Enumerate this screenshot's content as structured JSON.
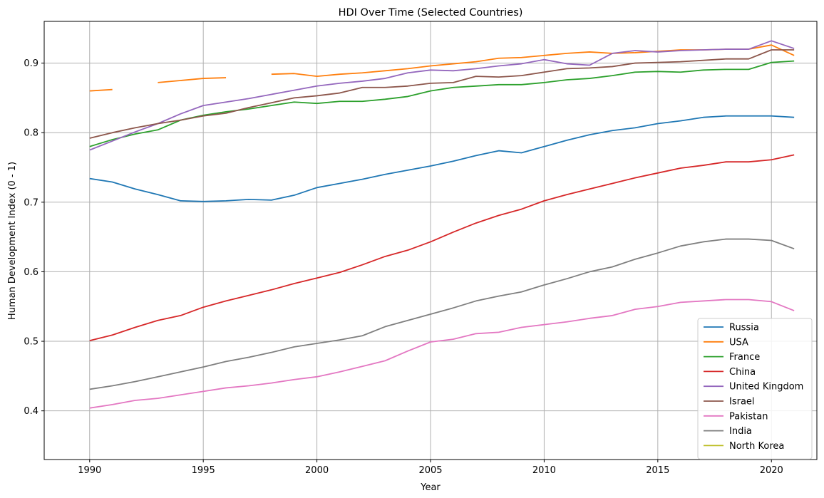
{
  "chart_data": {
    "type": "line",
    "title": "HDI Over Time (Selected Countries)",
    "xlabel": "Year",
    "ylabel": "Human Development Index (0 - 1)",
    "xlim": [
      1988,
      2022
    ],
    "ylim": [
      0.33,
      0.96
    ],
    "xticks": [
      1990,
      1995,
      2000,
      2005,
      2010,
      2015,
      2020
    ],
    "yticks": [
      0.4,
      0.5,
      0.6,
      0.7,
      0.8,
      0.9
    ],
    "grid": true,
    "legend_position": "lower-right",
    "x": [
      1990,
      1991,
      1992,
      1993,
      1994,
      1995,
      1996,
      1997,
      1998,
      1999,
      2000,
      2001,
      2002,
      2003,
      2004,
      2005,
      2006,
      2007,
      2008,
      2009,
      2010,
      2011,
      2012,
      2013,
      2014,
      2015,
      2016,
      2017,
      2018,
      2019,
      2020,
      2021
    ],
    "series": [
      {
        "name": "Russia",
        "color": "#1f77b4",
        "values": [
          0.734,
          0.729,
          0.719,
          0.711,
          0.702,
          0.701,
          0.702,
          0.704,
          0.703,
          0.71,
          0.721,
          0.727,
          0.733,
          0.74,
          0.746,
          0.752,
          0.759,
          0.767,
          0.774,
          0.771,
          0.78,
          0.789,
          0.797,
          0.803,
          0.807,
          0.813,
          0.817,
          0.822,
          0.824,
          0.824,
          0.824,
          0.822
        ]
      },
      {
        "name": "USA",
        "color": "#ff7f0e",
        "values": [
          0.86,
          0.862,
          null,
          0.872,
          0.875,
          0.878,
          0.879,
          null,
          0.884,
          0.885,
          0.881,
          0.884,
          0.886,
          0.889,
          0.892,
          0.896,
          0.899,
          0.902,
          0.907,
          0.908,
          0.911,
          0.914,
          0.916,
          0.914,
          0.915,
          0.917,
          0.919,
          0.919,
          0.92,
          0.92,
          0.926,
          0.911
        ]
      },
      {
        "name": "France",
        "color": "#2ca02c",
        "values": [
          0.78,
          0.79,
          0.798,
          0.804,
          0.818,
          0.825,
          0.83,
          0.834,
          0.839,
          0.844,
          0.842,
          0.845,
          0.845,
          0.848,
          0.852,
          0.86,
          0.865,
          0.867,
          0.869,
          0.869,
          0.872,
          0.876,
          0.878,
          0.882,
          0.887,
          0.888,
          0.887,
          0.89,
          0.891,
          0.891,
          0.901,
          0.903
        ]
      },
      {
        "name": "China",
        "color": "#d62728",
        "values": [
          0.501,
          0.509,
          0.52,
          0.53,
          0.537,
          0.549,
          0.558,
          0.566,
          0.574,
          0.583,
          0.591,
          0.599,
          0.61,
          0.622,
          0.631,
          0.643,
          0.657,
          0.67,
          0.681,
          0.69,
          0.702,
          0.711,
          0.719,
          0.727,
          0.735,
          0.742,
          0.749,
          0.753,
          0.758,
          0.758,
          0.761,
          0.768
        ]
      },
      {
        "name": "United Kingdom",
        "color": "#9467bd",
        "values": [
          0.775,
          0.788,
          0.801,
          0.813,
          0.827,
          0.839,
          0.844,
          0.849,
          0.855,
          0.861,
          0.867,
          0.871,
          0.874,
          0.878,
          0.886,
          0.89,
          0.889,
          0.892,
          0.896,
          0.899,
          0.905,
          0.899,
          0.897,
          0.914,
          0.918,
          0.916,
          0.918,
          0.919,
          0.92,
          0.92,
          0.932,
          0.921
        ]
      },
      {
        "name": "Israel",
        "color": "#8c564b",
        "values": [
          0.792,
          0.8,
          0.807,
          0.813,
          0.818,
          0.824,
          0.828,
          0.836,
          0.843,
          0.85,
          0.853,
          0.857,
          0.865,
          0.865,
          0.867,
          0.871,
          0.872,
          0.881,
          0.88,
          0.882,
          0.887,
          0.892,
          0.893,
          0.895,
          0.9,
          0.901,
          0.902,
          0.904,
          0.906,
          0.906,
          0.919,
          0.919
        ]
      },
      {
        "name": "Pakistan",
        "color": "#e377c2",
        "values": [
          0.404,
          0.409,
          0.415,
          0.418,
          0.423,
          0.428,
          0.433,
          0.436,
          0.44,
          0.445,
          0.449,
          0.456,
          0.464,
          0.472,
          0.486,
          0.499,
          0.503,
          0.511,
          0.513,
          0.52,
          0.524,
          0.528,
          0.533,
          0.537,
          0.546,
          0.55,
          0.556,
          0.558,
          0.56,
          0.56,
          0.557,
          0.544
        ]
      },
      {
        "name": "India",
        "color": "#7f7f7f",
        "values": [
          0.431,
          0.436,
          0.442,
          0.449,
          0.456,
          0.463,
          0.471,
          0.477,
          0.484,
          0.492,
          0.497,
          0.502,
          0.508,
          0.521,
          0.53,
          0.539,
          0.548,
          0.558,
          0.565,
          0.571,
          0.581,
          0.59,
          0.6,
          0.607,
          0.618,
          0.627,
          0.637,
          0.643,
          0.647,
          0.647,
          0.645,
          0.633
        ]
      },
      {
        "name": "North Korea",
        "color": "#bcbd22",
        "values": [
          null,
          null,
          null,
          null,
          null,
          null,
          null,
          null,
          null,
          null,
          null,
          null,
          null,
          null,
          null,
          null,
          null,
          null,
          null,
          null,
          null,
          null,
          null,
          null,
          null,
          null,
          null,
          null,
          null,
          null,
          null,
          null
        ]
      }
    ]
  }
}
